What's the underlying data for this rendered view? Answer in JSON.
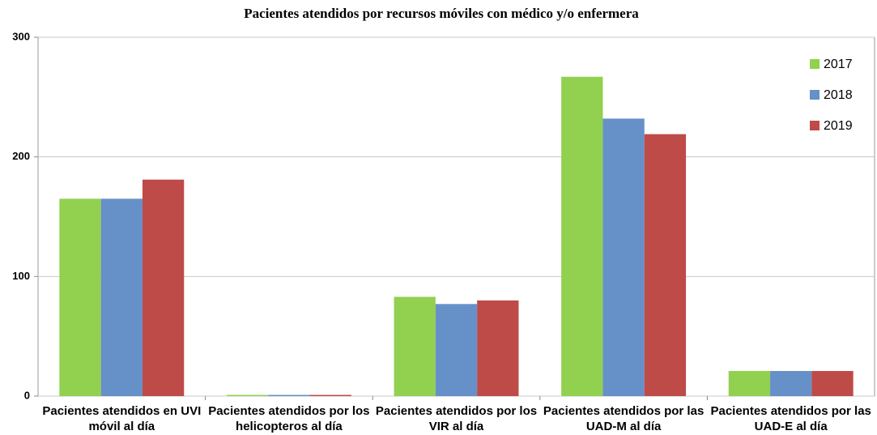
{
  "chart_data": {
    "type": "bar",
    "title": "Pacientes atendidos por recursos móviles con médico y/o enfermera",
    "categories": [
      "Pacientes atendidos en UVI móvil al día",
      "Pacientes atendidos por los helicopteros al día",
      "Pacientes atendidos por los VIR al día",
      "Pacientes atendidos por las UAD-M al día",
      "Pacientes atendidos por las UAD-E al día"
    ],
    "series": [
      {
        "name": "2017",
        "color": "#92d050",
        "values": [
          165,
          1,
          83,
          267,
          21
        ]
      },
      {
        "name": "2018",
        "color": "#6690c8",
        "values": [
          165,
          1,
          77,
          232,
          21
        ]
      },
      {
        "name": "2019",
        "color": "#be4b48",
        "values": [
          181,
          1,
          80,
          219,
          21
        ]
      }
    ],
    "ylim": [
      0,
      300
    ],
    "yticks": [
      0,
      100,
      200,
      300
    ],
    "grid": true,
    "legend": "top-right"
  }
}
